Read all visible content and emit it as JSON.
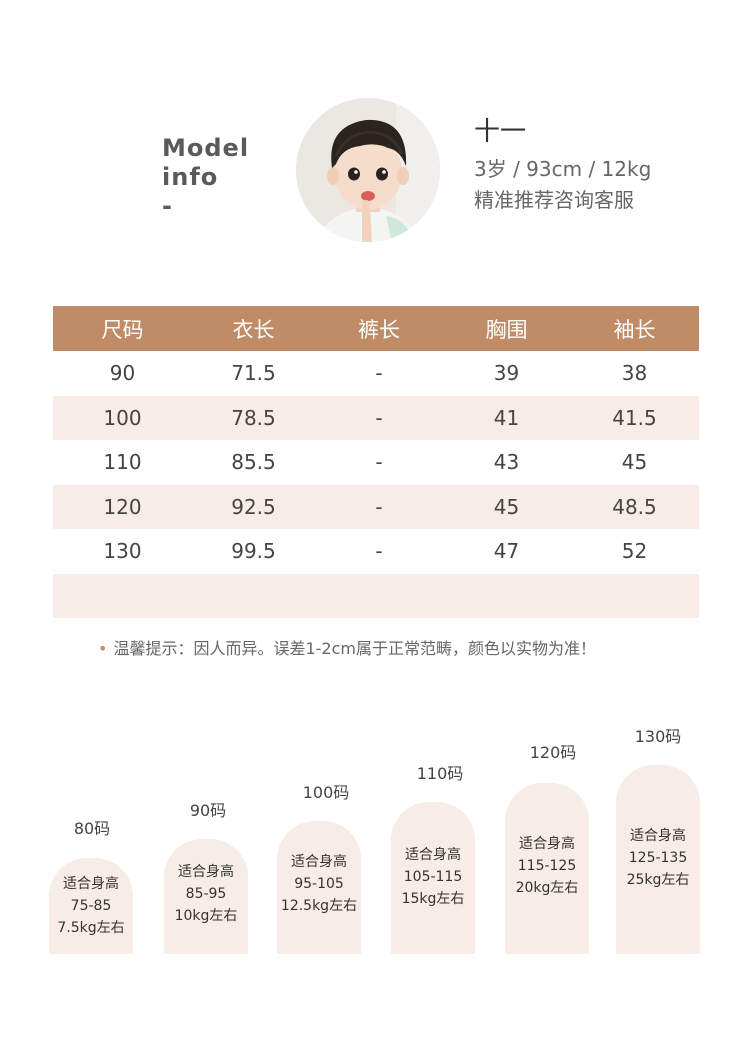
{
  "model": {
    "label_line1": "Model",
    "label_line2": "info",
    "label_line3": "-",
    "name": "十一",
    "stats": "3岁 / 93cm / 12kg",
    "note": "精准推荐咨询客服"
  },
  "table": {
    "headers": [
      "尺码",
      "衣长",
      "裤长",
      "胸围",
      "袖长"
    ],
    "rows": [
      [
        "90",
        "71.5",
        "-",
        "39",
        "38"
      ],
      [
        "100",
        "78.5",
        "-",
        "41",
        "41.5"
      ],
      [
        "110",
        "85.5",
        "-",
        "43",
        "45"
      ],
      [
        "120",
        "92.5",
        "-",
        "45",
        "48.5"
      ],
      [
        "130",
        "99.5",
        "-",
        "47",
        "52"
      ]
    ]
  },
  "tip": {
    "bullet": "•",
    "text": "温馨提示：因人而异。误差1-2cm属于正常范畴，颜色以实物为准！"
  },
  "size_chart": [
    {
      "size": "80码",
      "fit": "适合身高",
      "height": "75-85",
      "weight": "7.5kg左右"
    },
    {
      "size": "90码",
      "fit": "适合身高",
      "height": "85-95",
      "weight": "10kg左右"
    },
    {
      "size": "100码",
      "fit": "适合身高",
      "height": "95-105",
      "weight": "12.5kg左右"
    },
    {
      "size": "110码",
      "fit": "适合身高",
      "height": "105-115",
      "weight": "15kg左右"
    },
    {
      "size": "120码",
      "fit": "适合身高",
      "height": "115-125",
      "weight": "20kg左右"
    },
    {
      "size": "130码",
      "fit": "适合身高",
      "height": "125-135",
      "weight": "25kg左右"
    }
  ],
  "colors": {
    "header_bg": "#c08c67",
    "row_shade": "#f8ece6"
  }
}
